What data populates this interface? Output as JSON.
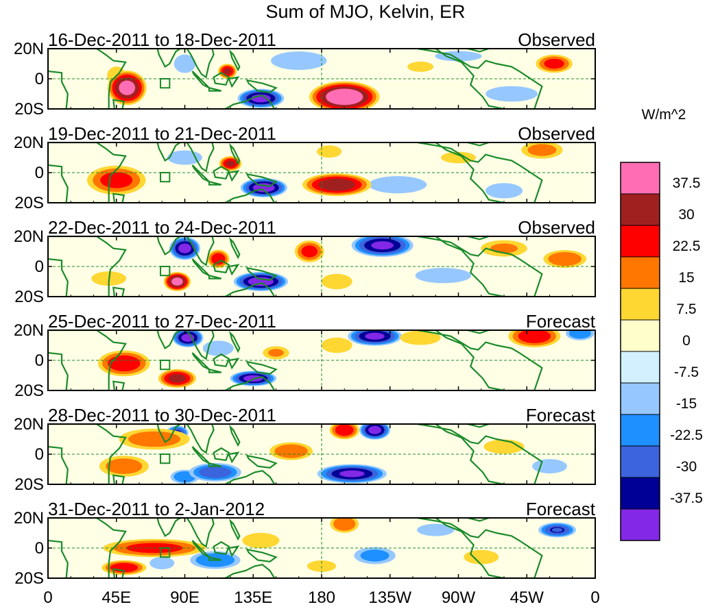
{
  "chart_data": {
    "type": "heatmap",
    "title": "Sum of MJO, Kelvin, ER",
    "units": "W/m^2",
    "x_ticks": [
      "0",
      "45E",
      "90E",
      "135E",
      "180",
      "135W",
      "90W",
      "45W",
      "0"
    ],
    "x_tick_lon": [
      0,
      45,
      90,
      135,
      180,
      225,
      270,
      315,
      360
    ],
    "y_ticks": [
      "20N",
      "0",
      "20S"
    ],
    "y_tick_lat": [
      20,
      0,
      -20
    ],
    "lon_range": [
      0,
      360
    ],
    "lat_range": [
      -20,
      20
    ],
    "panels": [
      {
        "date_range": "16-Dec-2011 to 18-Dec-2011",
        "status": "Observed"
      },
      {
        "date_range": "19-Dec-2011 to 21-Dec-2011",
        "status": "Observed"
      },
      {
        "date_range": "22-Dec-2011 to 24-Dec-2011",
        "status": "Observed"
      },
      {
        "date_range": "25-Dec-2011 to 27-Dec-2011",
        "status": "Forecast"
      },
      {
        "date_range": "28-Dec-2011 to 30-Dec-2011",
        "status": "Forecast"
      },
      {
        "date_range": "31-Dec-2011 to 2-Jan-2012",
        "status": "Forecast"
      }
    ],
    "colorbar": {
      "levels": [
        "37.5",
        "30",
        "22.5",
        "15",
        "7.5",
        "0",
        "-7.5",
        "-15",
        "-22.5",
        "-30",
        "-37.5"
      ],
      "colors": [
        "#ff6eb4",
        "#a02020",
        "#ff0000",
        "#ff7700",
        "#ffd733",
        "#ffffcc",
        "#d2f0ff",
        "#96c8ff",
        "#1e90ff",
        "#3c64dc",
        "#000096",
        "#8228e6"
      ]
    },
    "anomalies": [
      [
        {
          "lon": 52,
          "lat": -6,
          "a": 10,
          "b": 9,
          "v": 40
        },
        {
          "lon": 45,
          "lat": 2,
          "a": 6,
          "b": 6,
          "v": 12
        },
        {
          "lon": 118,
          "lat": 5,
          "a": 5,
          "b": 4,
          "v": 30
        },
        {
          "lon": 140,
          "lat": -13,
          "a": 12,
          "b": 5,
          "v": -40
        },
        {
          "lon": 165,
          "lat": 12,
          "a": 18,
          "b": 6,
          "v": -12
        },
        {
          "lon": 195,
          "lat": -12,
          "a": 18,
          "b": 8,
          "v": 45
        },
        {
          "lon": 90,
          "lat": 10,
          "a": 7,
          "b": 6,
          "v": -12
        },
        {
          "lon": 305,
          "lat": -10,
          "a": 20,
          "b": 6,
          "v": -8
        },
        {
          "lon": 333,
          "lat": 10,
          "a": 10,
          "b": 5,
          "v": 25
        },
        {
          "lon": 270,
          "lat": 15,
          "a": 18,
          "b": 4,
          "v": -8
        },
        {
          "lon": 245,
          "lat": 8,
          "a": 10,
          "b": 4,
          "v": 8
        }
      ],
      [
        {
          "lon": 45,
          "lat": -5,
          "a": 16,
          "b": 8,
          "v": 25
        },
        {
          "lon": 120,
          "lat": 6,
          "a": 6,
          "b": 4,
          "v": 30
        },
        {
          "lon": 142,
          "lat": -10,
          "a": 12,
          "b": 5,
          "v": -42
        },
        {
          "lon": 190,
          "lat": -8,
          "a": 18,
          "b": 6,
          "v": 35
        },
        {
          "lon": 325,
          "lat": 15,
          "a": 12,
          "b": 5,
          "v": 18
        },
        {
          "lon": 90,
          "lat": 10,
          "a": 12,
          "b": 5,
          "v": -10
        },
        {
          "lon": 230,
          "lat": -8,
          "a": 20,
          "b": 6,
          "v": -10
        },
        {
          "lon": 185,
          "lat": 14,
          "a": 8,
          "b": 4,
          "v": 12
        },
        {
          "lon": 270,
          "lat": 10,
          "a": 12,
          "b": 4,
          "v": 10
        },
        {
          "lon": 300,
          "lat": -12,
          "a": 12,
          "b": 5,
          "v": -12
        }
      ],
      [
        {
          "lon": 90,
          "lat": 12,
          "a": 8,
          "b": 6,
          "v": -40
        },
        {
          "lon": 85,
          "lat": -10,
          "a": 7,
          "b": 5,
          "v": 40
        },
        {
          "lon": 140,
          "lat": -10,
          "a": 14,
          "b": 5,
          "v": -42
        },
        {
          "lon": 112,
          "lat": 5,
          "a": 6,
          "b": 5,
          "v": 28
        },
        {
          "lon": 172,
          "lat": 10,
          "a": 8,
          "b": 6,
          "v": 25
        },
        {
          "lon": 220,
          "lat": 14,
          "a": 16,
          "b": 6,
          "v": -38
        },
        {
          "lon": 340,
          "lat": 5,
          "a": 12,
          "b": 5,
          "v": 22
        },
        {
          "lon": 40,
          "lat": -8,
          "a": 12,
          "b": 5,
          "v": 10
        },
        {
          "lon": 260,
          "lat": -6,
          "a": 18,
          "b": 5,
          "v": -12
        },
        {
          "lon": 190,
          "lat": -10,
          "a": 10,
          "b": 5,
          "v": 12
        },
        {
          "lon": 300,
          "lat": 12,
          "a": 14,
          "b": 5,
          "v": 15
        }
      ],
      [
        {
          "lon": 50,
          "lat": -2,
          "a": 14,
          "b": 7,
          "v": 28
        },
        {
          "lon": 92,
          "lat": 15,
          "a": 8,
          "b": 5,
          "v": -40
        },
        {
          "lon": 85,
          "lat": -12,
          "a": 10,
          "b": 5,
          "v": 32
        },
        {
          "lon": 135,
          "lat": -12,
          "a": 12,
          "b": 4,
          "v": -40
        },
        {
          "lon": 215,
          "lat": 16,
          "a": 14,
          "b": 5,
          "v": -38
        },
        {
          "lon": 320,
          "lat": 16,
          "a": 14,
          "b": 6,
          "v": 28
        },
        {
          "lon": 350,
          "lat": 18,
          "a": 8,
          "b": 4,
          "v": -22
        },
        {
          "lon": 112,
          "lat": 8,
          "a": 10,
          "b": 5,
          "v": -12
        },
        {
          "lon": 245,
          "lat": 15,
          "a": 14,
          "b": 5,
          "v": 10
        },
        {
          "lon": 190,
          "lat": 10,
          "a": 10,
          "b": 5,
          "v": 12
        },
        {
          "lon": 150,
          "lat": 5,
          "a": 8,
          "b": 4,
          "v": 15
        }
      ],
      [
        {
          "lon": 70,
          "lat": 10,
          "a": 20,
          "b": 6,
          "v": 20
        },
        {
          "lon": 215,
          "lat": 16,
          "a": 8,
          "b": 5,
          "v": -40
        },
        {
          "lon": 195,
          "lat": 16,
          "a": 8,
          "b": 5,
          "v": 28
        },
        {
          "lon": 200,
          "lat": -13,
          "a": 18,
          "b": 5,
          "v": -38
        },
        {
          "lon": 85,
          "lat": 14,
          "a": 6,
          "b": 4,
          "v": -30
        },
        {
          "lon": 160,
          "lat": 2,
          "a": 12,
          "b": 5,
          "v": 22
        },
        {
          "lon": 110,
          "lat": -12,
          "a": 14,
          "b": 5,
          "v": -28
        },
        {
          "lon": 50,
          "lat": -8,
          "a": 14,
          "b": 6,
          "v": 20
        },
        {
          "lon": 90,
          "lat": -15,
          "a": 8,
          "b": 4,
          "v": -22
        },
        {
          "lon": 300,
          "lat": 5,
          "a": 14,
          "b": 5,
          "v": 10
        },
        {
          "lon": 330,
          "lat": -8,
          "a": 12,
          "b": 5,
          "v": -10
        }
      ],
      [
        {
          "lon": 70,
          "lat": 0,
          "a": 28,
          "b": 5,
          "v": 25
        },
        {
          "lon": 75,
          "lat": -10,
          "a": 8,
          "b": 4,
          "v": -12
        },
        {
          "lon": 50,
          "lat": -13,
          "a": 12,
          "b": 4,
          "v": 28
        },
        {
          "lon": 110,
          "lat": -8,
          "a": 14,
          "b": 5,
          "v": -22
        },
        {
          "lon": 195,
          "lat": 16,
          "a": 8,
          "b": 5,
          "v": 22
        },
        {
          "lon": 215,
          "lat": -5,
          "a": 12,
          "b": 5,
          "v": -18
        },
        {
          "lon": 335,
          "lat": 12,
          "a": 10,
          "b": 4,
          "v": -30
        },
        {
          "lon": 140,
          "lat": 5,
          "a": 12,
          "b": 5,
          "v": 12
        },
        {
          "lon": 255,
          "lat": 12,
          "a": 12,
          "b": 4,
          "v": -12
        },
        {
          "lon": 285,
          "lat": -6,
          "a": 12,
          "b": 5,
          "v": 10
        },
        {
          "lon": 180,
          "lat": -12,
          "a": 10,
          "b": 4,
          "v": 10
        }
      ]
    ]
  }
}
